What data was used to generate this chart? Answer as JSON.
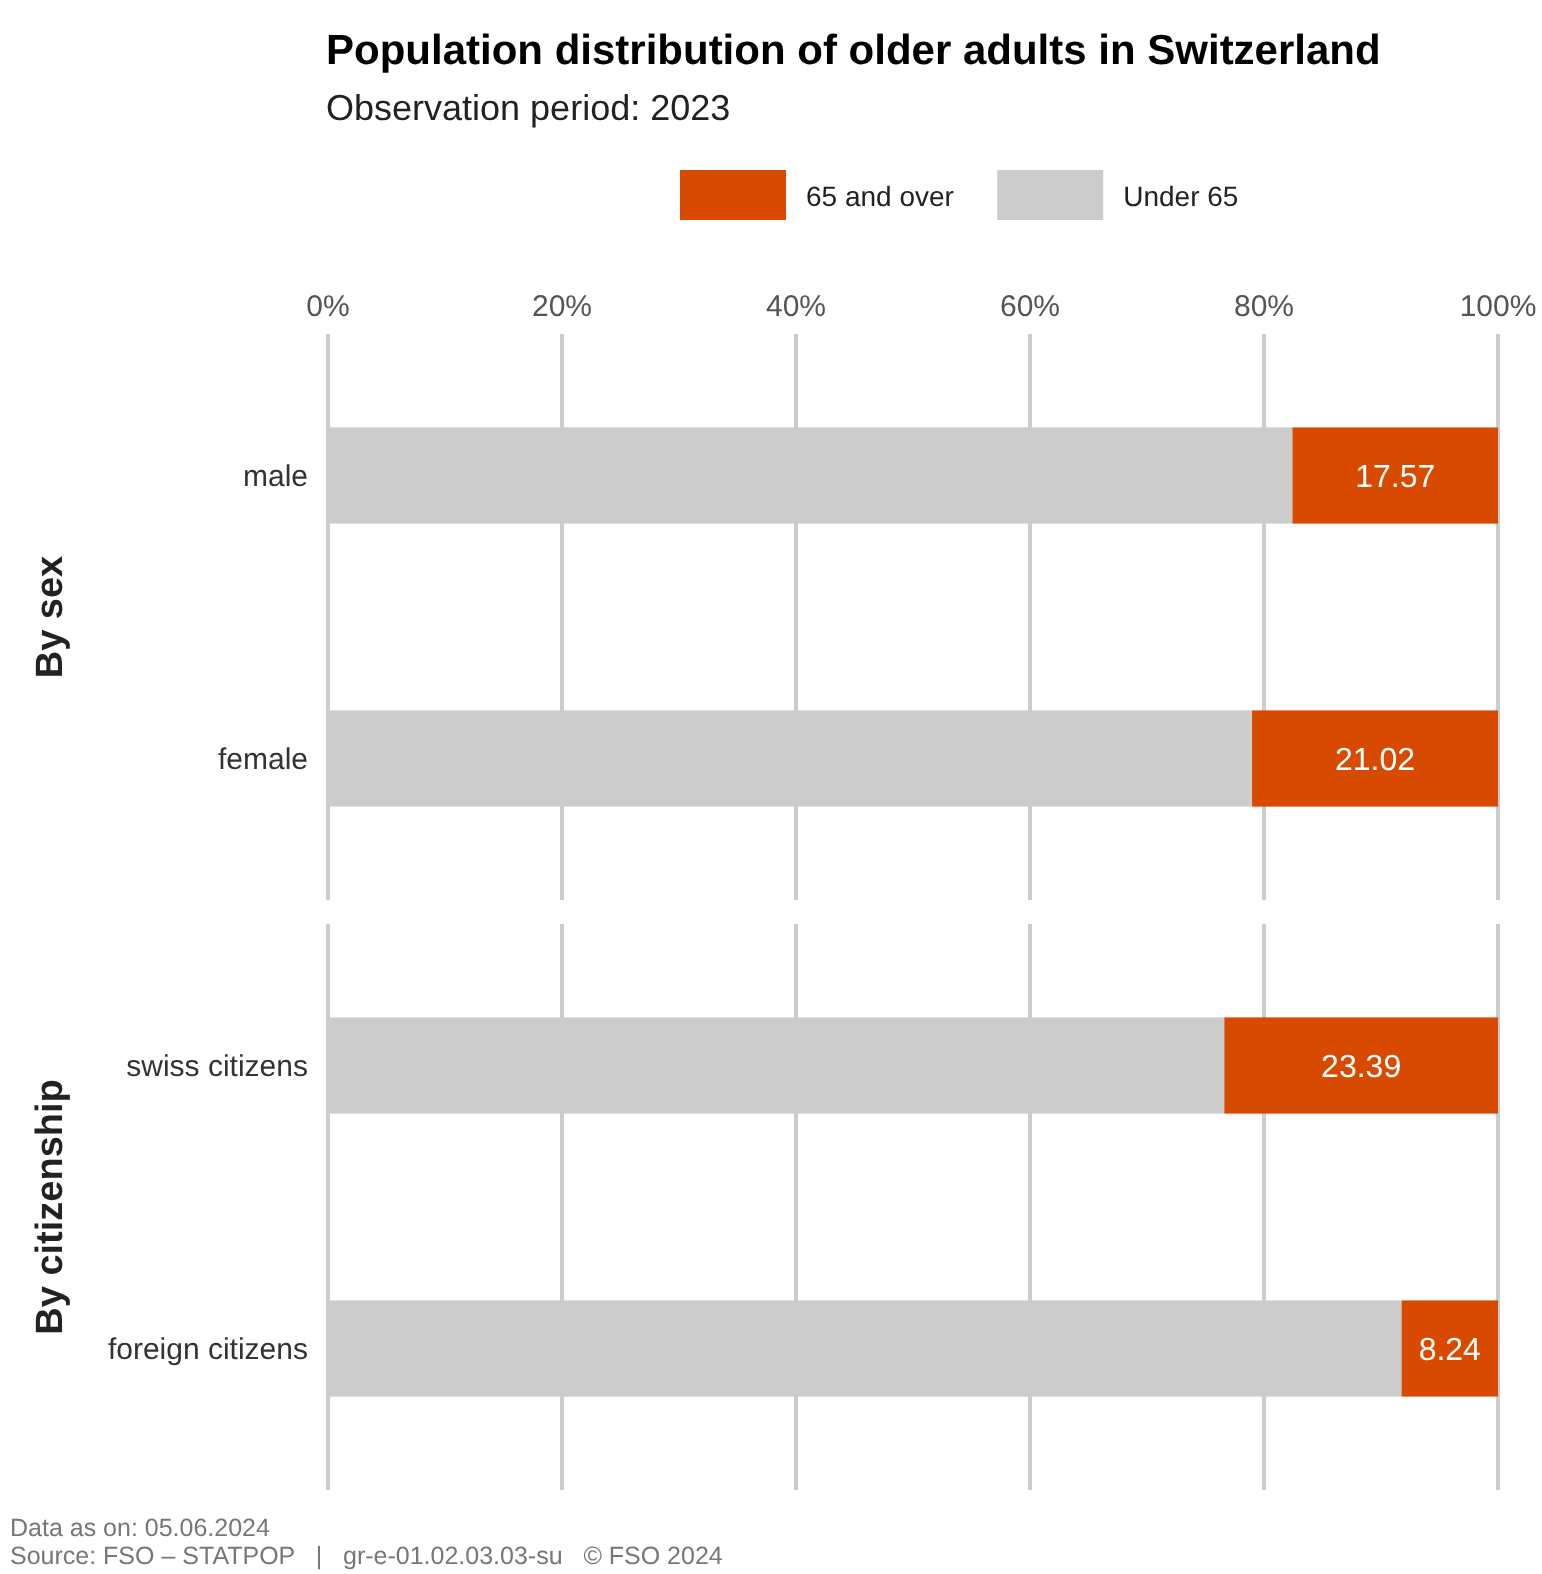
{
  "chart_data": [
    {
      "type": "bar",
      "orientation": "horizontal",
      "stacked": true,
      "title": "Population distribution of older adults in Switzerland",
      "subtitle": "Observation period: 2023",
      "ylabel": "By sex",
      "categories": [
        "male",
        "female"
      ],
      "series": [
        {
          "name": "Under 65",
          "color": "#cccccc",
          "values": [
            82.43,
            78.98
          ]
        },
        {
          "name": "65 and over",
          "color": "#d84a00",
          "values": [
            17.57,
            21.02
          ],
          "value_labels": [
            "17.57",
            "21.02"
          ]
        }
      ],
      "xlim": [
        0,
        100
      ],
      "xticks": [
        {
          "value": 0,
          "label": "0%"
        },
        {
          "value": 20,
          "label": "20%"
        },
        {
          "value": 40,
          "label": "40%"
        },
        {
          "value": 60,
          "label": "60%"
        },
        {
          "value": 80,
          "label": "80%"
        },
        {
          "value": 100,
          "label": "100%"
        }
      ],
      "grid": "x",
      "legend": "top"
    },
    {
      "type": "bar",
      "orientation": "horizontal",
      "stacked": true,
      "ylabel": "By citizenship",
      "categories": [
        "swiss citizens",
        "foreign citizens"
      ],
      "series": [
        {
          "color": "#cccccc",
          "values": [
            76.61,
            91.76
          ]
        },
        {
          "color": "#d84a00",
          "values": [
            23.39,
            8.24
          ],
          "value_labels": [
            "23.39",
            "8.24"
          ]
        }
      ],
      "xlim": [
        0,
        100
      ],
      "xticks": [
        {
          "value": 0,
          "label": null
        },
        {
          "value": 20,
          "label": null
        },
        {
          "value": 40,
          "label": null
        },
        {
          "value": 60,
          "label": null
        },
        {
          "value": 80,
          "label": null
        },
        {
          "value": 100,
          "label": null
        }
      ],
      "grid": "x",
      "tick_labels": "y",
      "annotations": [
        "Data as on: 05.06.2024",
        "Source: FSO – STATPOP   |   gr-e-01.02.03.03-su   © FSO 2024"
      ]
    }
  ]
}
